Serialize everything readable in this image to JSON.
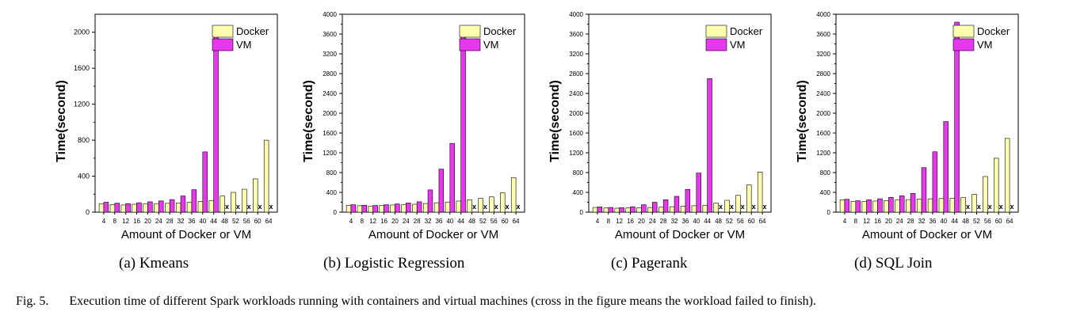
{
  "figure": {
    "label": "Fig. 5.",
    "caption": "Execution time of different Spark workloads running with containers and virtual machines (cross in the figure means the workload failed to finish)."
  },
  "colors": {
    "docker": "#ffffb0",
    "vm": "#e838ee",
    "axis": "#000000"
  },
  "chart_data": [
    {
      "type": "bar",
      "subcaption": "(a)  Kmeans",
      "xlabel": "Amount of Docker or VM",
      "ylabel": "Time(second)",
      "ylim": [
        0,
        2200
      ],
      "yticks": [
        0,
        400,
        800,
        1200,
        1600,
        2000
      ],
      "categories": [
        "4",
        "8",
        "12",
        "16",
        "20",
        "24",
        "28",
        "32",
        "36",
        "40",
        "44",
        "48",
        "52",
        "56",
        "60",
        "64"
      ],
      "series": [
        {
          "name": "Docker",
          "values": [
            95,
            85,
            80,
            88,
            92,
            95,
            98,
            102,
            110,
            120,
            130,
            180,
            220,
            255,
            370,
            800
          ]
        },
        {
          "name": "VM",
          "values": [
            110,
            100,
            95,
            105,
            115,
            125,
            140,
            180,
            250,
            670,
            1970,
            null,
            null,
            null,
            null,
            null
          ]
        }
      ],
      "failed_marker": "x",
      "legend": [
        "Docker",
        "VM"
      ]
    },
    {
      "type": "bar",
      "subcaption": "(b)  Logistic Regression",
      "xlabel": "Amount of Docker or VM",
      "ylabel": "Time(second)",
      "ylim": [
        0,
        4000
      ],
      "yticks": [
        0,
        400,
        800,
        1200,
        1600,
        2000,
        2400,
        2800,
        3200,
        3600,
        4000
      ],
      "categories": [
        "4",
        "8",
        "12",
        "16",
        "20",
        "24",
        "28",
        "32",
        "36",
        "40",
        "44",
        "48",
        "52",
        "56",
        "60",
        "64"
      ],
      "series": [
        {
          "name": "Docker",
          "values": [
            140,
            130,
            125,
            135,
            145,
            150,
            160,
            175,
            190,
            205,
            225,
            250,
            280,
            310,
            390,
            700
          ]
        },
        {
          "name": "VM",
          "values": [
            150,
            140,
            135,
            150,
            165,
            185,
            210,
            450,
            870,
            1390,
            3640,
            null,
            null,
            null,
            null,
            null
          ]
        }
      ],
      "failed_marker": "x",
      "legend": [
        "Docker",
        "VM"
      ]
    },
    {
      "type": "bar",
      "subcaption": "(c)  Pagerank",
      "xlabel": "Amount of Docker or VM",
      "ylabel": "Time(second)",
      "ylim": [
        0,
        4000
      ],
      "yticks": [
        0,
        400,
        800,
        1200,
        1600,
        2000,
        2400,
        2800,
        3200,
        3600,
        4000
      ],
      "categories": [
        "4",
        "8",
        "12",
        "16",
        "20",
        "24",
        "28",
        "32",
        "36",
        "40",
        "44",
        "48",
        "52",
        "56",
        "60",
        "64"
      ],
      "series": [
        {
          "name": "Docker",
          "values": [
            95,
            85,
            80,
            85,
            90,
            95,
            100,
            110,
            120,
            130,
            140,
            185,
            240,
            340,
            550,
            810
          ]
        },
        {
          "name": "VM",
          "values": [
            105,
            95,
            90,
            110,
            150,
            200,
            250,
            320,
            460,
            790,
            2700,
            null,
            null,
            null,
            null,
            null
          ]
        }
      ],
      "failed_marker": "x",
      "legend": [
        "Docker",
        "VM"
      ]
    },
    {
      "type": "bar",
      "subcaption": "(d)  SQL Join",
      "xlabel": "Amount of Docker or VM",
      "ylabel": "Time(second)",
      "ylim": [
        0,
        4000
      ],
      "yticks": [
        0,
        400,
        800,
        1200,
        1600,
        2000,
        2400,
        2800,
        3200,
        3600,
        4000
      ],
      "categories": [
        "4",
        "8",
        "12",
        "16",
        "20",
        "24",
        "28",
        "32",
        "36",
        "40",
        "44",
        "48",
        "52",
        "56",
        "60",
        "64"
      ],
      "series": [
        {
          "name": "Docker",
          "values": [
            250,
            220,
            215,
            225,
            235,
            245,
            255,
            265,
            270,
            275,
            280,
            300,
            360,
            720,
            1090,
            1490
          ]
        },
        {
          "name": "VM",
          "values": [
            260,
            230,
            250,
            270,
            300,
            330,
            380,
            900,
            1220,
            1830,
            3840,
            null,
            null,
            null,
            null,
            null
          ]
        }
      ],
      "failed_marker": "x",
      "legend": [
        "Docker",
        "VM"
      ]
    }
  ]
}
